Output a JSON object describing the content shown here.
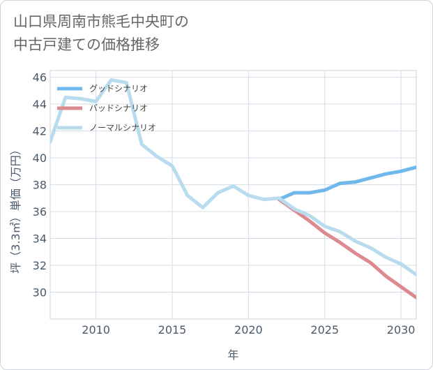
{
  "title": {
    "line1": "山口県周南市熊毛中央町の",
    "line2": "中古戸建ての価格推移"
  },
  "chart_data": {
    "type": "line",
    "xlabel": "年",
    "ylabel": "坪（3.3㎡）単価（万円）",
    "xlim": [
      2007,
      2031
    ],
    "ylim": [
      28,
      46.5
    ],
    "x_ticks": [
      2010,
      2015,
      2020,
      2025,
      2030
    ],
    "y_ticks": [
      30,
      32,
      34,
      36,
      38,
      40,
      42,
      44,
      46
    ],
    "grid": true,
    "legend_position": "top-left",
    "series": [
      {
        "name": "グッドシナリオ",
        "color": "#6fb8ec",
        "x": [
          2022,
          2023,
          2024,
          2025,
          2026,
          2027,
          2028,
          2029,
          2030,
          2031
        ],
        "y": [
          36.9,
          37.4,
          37.4,
          37.6,
          38.1,
          38.2,
          38.5,
          38.8,
          39.0,
          39.3
        ]
      },
      {
        "name": "バッドシナリオ",
        "color": "#dc8a90",
        "x": [
          2022,
          2023,
          2024,
          2025,
          2026,
          2027,
          2028,
          2029,
          2030,
          2031
        ],
        "y": [
          36.9,
          36.1,
          35.3,
          34.4,
          33.7,
          32.9,
          32.2,
          31.2,
          30.4,
          29.6
        ]
      },
      {
        "name": "ノーマルシナリオ",
        "color": "#b9dbee",
        "x": [
          2007,
          2008,
          2009,
          2010,
          2011,
          2012,
          2013,
          2014,
          2015,
          2016,
          2017,
          2018,
          2019,
          2020,
          2021,
          2022,
          2023,
          2024,
          2025,
          2026,
          2027,
          2028,
          2029,
          2030,
          2031
        ],
        "y": [
          41.2,
          44.5,
          44.4,
          44.2,
          45.8,
          45.6,
          41.0,
          40.1,
          39.4,
          37.2,
          36.3,
          37.4,
          37.9,
          37.2,
          36.9,
          37.0,
          36.2,
          35.7,
          34.9,
          34.5,
          33.8,
          33.3,
          32.6,
          32.1,
          31.3
        ]
      }
    ]
  }
}
